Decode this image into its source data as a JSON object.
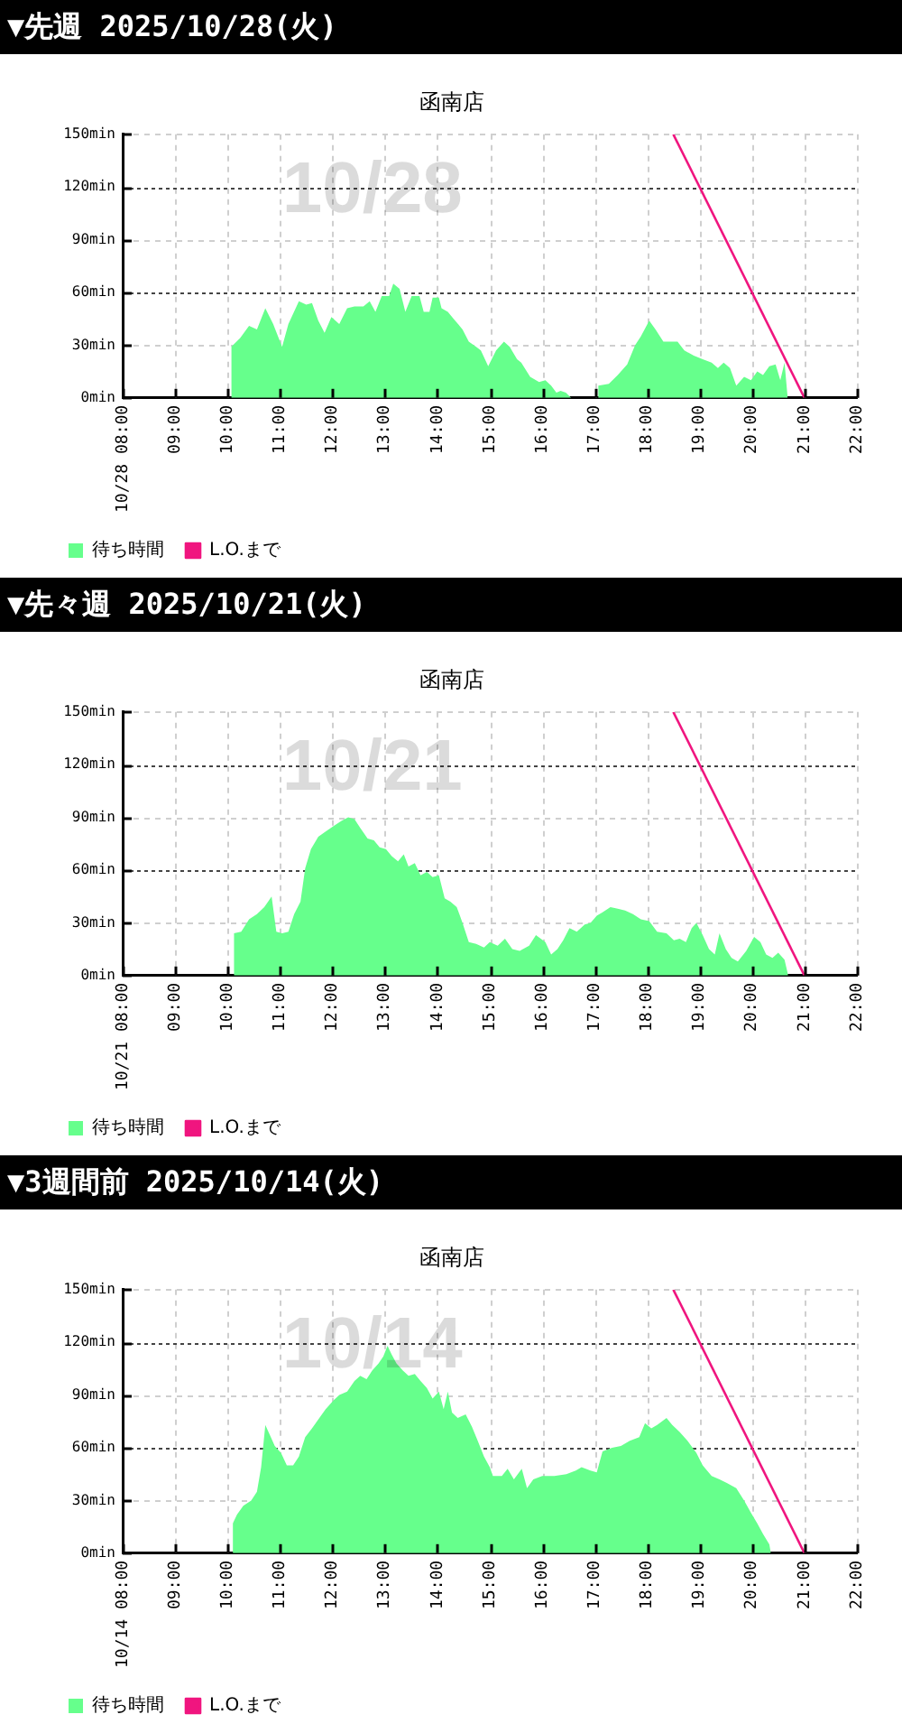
{
  "chart_data": [
    {
      "type": "area",
      "title": "▼先週 2025/10/28(火)",
      "subtitle": "函南店",
      "annotations": [
        "10/28"
      ],
      "xlim": [
        8,
        22
      ],
      "xticks": [
        {
          "value": 8,
          "label": "10/28 08:00"
        },
        {
          "value": 9,
          "label": "09:00"
        },
        {
          "value": 10,
          "label": "10:00"
        },
        {
          "value": 11,
          "label": "11:00"
        },
        {
          "value": 12,
          "label": "12:00"
        },
        {
          "value": 13,
          "label": "13:00"
        },
        {
          "value": 14,
          "label": "14:00"
        },
        {
          "value": 15,
          "label": "15:00"
        },
        {
          "value": 16,
          "label": "16:00"
        },
        {
          "value": 17,
          "label": "17:00"
        },
        {
          "value": 18,
          "label": "18:00"
        },
        {
          "value": 19,
          "label": "19:00"
        },
        {
          "value": 20,
          "label": "20:00"
        },
        {
          "value": 21,
          "label": "21:00"
        },
        {
          "value": 22,
          "label": "22:00"
        }
      ],
      "ylim": [
        0,
        150
      ],
      "yticks": [
        {
          "value": 0,
          "label": "0min"
        },
        {
          "value": 30,
          "label": "30min"
        },
        {
          "value": 60,
          "label": "60min"
        },
        {
          "value": 90,
          "label": "90min"
        },
        {
          "value": 120,
          "label": "120min"
        },
        {
          "value": 150,
          "label": "150min"
        }
      ],
      "grid": true,
      "legend": "bottom left",
      "marker": "none",
      "series": [
        {
          "name": "待ち時間",
          "color": "#66ff8c",
          "x": [
            10.07,
            10.24,
            10.41,
            10.56,
            10.72,
            10.87,
            11.04,
            11.16,
            11.36,
            11.5,
            11.61,
            11.73,
            11.85,
            11.98,
            12.13,
            12.28,
            12.42,
            12.59,
            12.71,
            12.82,
            12.94,
            13.08,
            13.16,
            13.28,
            13.39,
            13.51,
            13.66,
            13.74,
            13.85,
            13.91,
            14.03,
            14.08,
            14.2,
            14.31,
            14.48,
            14.6,
            14.74,
            14.83,
            14.97,
            15.12,
            15.27,
            15.38,
            15.52,
            15.6,
            15.77,
            15.94,
            16.06,
            16.17,
            16.27,
            16.35,
            16.45,
            16.55,
            17.05,
            17.07,
            17.27,
            17.44,
            17.62,
            17.77,
            17.88,
            18.04,
            18.16,
            18.31,
            18.46,
            18.58,
            18.71,
            18.89,
            19.06,
            19.23,
            19.35,
            19.46,
            19.58,
            19.7,
            19.85,
            19.98,
            20.1,
            20.21,
            20.33,
            20.45,
            20.54,
            20.62,
            20.68
          ],
          "values": [
            29,
            34,
            41,
            39,
            51,
            42,
            29,
            42,
            55,
            53,
            54,
            44,
            37,
            46,
            42,
            51,
            52,
            52,
            55,
            49,
            58,
            58,
            65,
            62,
            49,
            58,
            58,
            49,
            49,
            57,
            57,
            51,
            49,
            45,
            39,
            32,
            29,
            27,
            18,
            27,
            32,
            29,
            22,
            20,
            12,
            9,
            10,
            7,
            3,
            4,
            3,
            0,
            0,
            7,
            8,
            13,
            19,
            30,
            35,
            44,
            39,
            32,
            32,
            32,
            27,
            24,
            22,
            20,
            17,
            20,
            17,
            7,
            12,
            10,
            15,
            13,
            18,
            19,
            10,
            20,
            0
          ]
        },
        {
          "name": "L.O.まで",
          "type": "line",
          "color": "#f0157f",
          "x": [
            18.5,
            21
          ],
          "values": [
            150,
            0
          ]
        }
      ]
    },
    {
      "type": "area",
      "title": "▼先々週 2025/10/21(火)",
      "subtitle": "函南店",
      "annotations": [
        "10/21"
      ],
      "xlim": [
        8,
        22
      ],
      "xticks": [
        {
          "value": 8,
          "label": "10/21 08:00"
        },
        {
          "value": 9,
          "label": "09:00"
        },
        {
          "value": 10,
          "label": "10:00"
        },
        {
          "value": 11,
          "label": "11:00"
        },
        {
          "value": 12,
          "label": "12:00"
        },
        {
          "value": 13,
          "label": "13:00"
        },
        {
          "value": 14,
          "label": "14:00"
        },
        {
          "value": 15,
          "label": "15:00"
        },
        {
          "value": 16,
          "label": "16:00"
        },
        {
          "value": 17,
          "label": "17:00"
        },
        {
          "value": 18,
          "label": "18:00"
        },
        {
          "value": 19,
          "label": "19:00"
        },
        {
          "value": 20,
          "label": "20:00"
        },
        {
          "value": 21,
          "label": "21:00"
        },
        {
          "value": 22,
          "label": "22:00"
        }
      ],
      "ylim": [
        0,
        150
      ],
      "yticks": [
        {
          "value": 0,
          "label": "0min"
        },
        {
          "value": 30,
          "label": "30min"
        },
        {
          "value": 60,
          "label": "60min"
        },
        {
          "value": 90,
          "label": "90min"
        },
        {
          "value": 120,
          "label": "120min"
        },
        {
          "value": 150,
          "label": "150min"
        }
      ],
      "grid": true,
      "legend": "bottom left",
      "marker": "none",
      "series": [
        {
          "name": "待ち時間",
          "color": "#66ff8c",
          "x": [
            10.12,
            10.26,
            10.41,
            10.56,
            10.7,
            10.84,
            10.93,
            11.04,
            11.16,
            11.27,
            11.39,
            11.48,
            11.59,
            11.73,
            11.87,
            12.02,
            12.17,
            12.3,
            12.42,
            12.53,
            12.67,
            12.79,
            12.9,
            13.02,
            13.13,
            13.25,
            13.36,
            13.45,
            13.57,
            13.68,
            13.8,
            13.91,
            14.03,
            14.14,
            14.25,
            14.37,
            14.48,
            14.6,
            14.74,
            14.89,
            15,
            15.15,
            15.29,
            15.43,
            15.57,
            15.75,
            15.88,
            16.06,
            16.17,
            16.29,
            16.4,
            16.52,
            16.66,
            16.81,
            16.92,
            17.04,
            17.15,
            17.3,
            17.44,
            17.58,
            17.73,
            17.88,
            18.04,
            18.19,
            18.37,
            18.51,
            18.62,
            18.74,
            18.85,
            18.94,
            19.06,
            19.18,
            19.29,
            19.38,
            19.5,
            19.61,
            19.73,
            19.89,
            20.04,
            20.16,
            20.27,
            20.39,
            20.5,
            20.62,
            20.69
          ],
          "values": [
            24,
            25,
            32,
            35,
            39,
            45,
            25,
            24,
            25,
            35,
            42,
            61,
            72,
            79,
            82,
            85,
            88,
            90,
            89,
            84,
            78,
            77,
            73,
            72,
            68,
            65,
            69,
            62,
            64,
            57,
            59,
            56,
            57,
            44,
            42,
            39,
            30,
            19,
            18,
            16,
            19,
            17,
            21,
            15,
            14,
            17,
            23,
            19,
            12,
            15,
            20,
            27,
            25,
            29,
            30,
            34,
            36,
            39,
            38,
            37,
            35,
            32,
            31,
            25,
            24,
            20,
            21,
            19,
            27,
            30,
            23,
            15,
            12,
            24,
            15,
            10,
            8,
            14,
            22,
            19,
            12,
            10,
            13,
            9,
            0
          ]
        },
        {
          "name": "L.O.まで",
          "type": "line",
          "color": "#f0157f",
          "x": [
            18.5,
            21
          ],
          "values": [
            150,
            0
          ]
        }
      ]
    },
    {
      "type": "area",
      "title": "▼3週間前 2025/10/14(火)",
      "subtitle": "函南店",
      "annotations": [
        "10/14"
      ],
      "xlim": [
        8,
        22
      ],
      "xticks": [
        {
          "value": 8,
          "label": "10/14 08:00"
        },
        {
          "value": 9,
          "label": "09:00"
        },
        {
          "value": 10,
          "label": "10:00"
        },
        {
          "value": 11,
          "label": "11:00"
        },
        {
          "value": 12,
          "label": "12:00"
        },
        {
          "value": 13,
          "label": "13:00"
        },
        {
          "value": 14,
          "label": "14:00"
        },
        {
          "value": 15,
          "label": "15:00"
        },
        {
          "value": 16,
          "label": "16:00"
        },
        {
          "value": 17,
          "label": "17:00"
        },
        {
          "value": 18,
          "label": "18:00"
        },
        {
          "value": 19,
          "label": "19:00"
        },
        {
          "value": 20,
          "label": "20:00"
        },
        {
          "value": 21,
          "label": "21:00"
        },
        {
          "value": 22,
          "label": "22:00"
        }
      ],
      "ylim": [
        0,
        150
      ],
      "yticks": [
        {
          "value": 0,
          "label": "0min"
        },
        {
          "value": 30,
          "label": "30min"
        },
        {
          "value": 60,
          "label": "60min"
        },
        {
          "value": 90,
          "label": "90min"
        },
        {
          "value": 120,
          "label": "120min"
        },
        {
          "value": 150,
          "label": "150min"
        }
      ],
      "grid": true,
      "legend": "bottom left",
      "marker": "none",
      "series": [
        {
          "name": "待ち時間",
          "color": "#66ff8c",
          "x": [
            10.1,
            10.18,
            10.3,
            10.45,
            10.56,
            10.64,
            10.72,
            10.81,
            10.9,
            11.02,
            11.13,
            11.25,
            11.36,
            11.48,
            11.61,
            11.75,
            11.87,
            12.02,
            12.13,
            12.28,
            12.42,
            12.53,
            12.65,
            12.76,
            12.88,
            12.97,
            13.05,
            13.13,
            13.22,
            13.34,
            13.45,
            13.57,
            13.68,
            13.8,
            13.91,
            14.03,
            14.12,
            14.2,
            14.28,
            14.39,
            14.54,
            14.66,
            14.77,
            14.89,
            15,
            15.06,
            15.23,
            15.34,
            15.46,
            15.61,
            15.71,
            15.83,
            16,
            16.23,
            16.46,
            16.64,
            16.75,
            16.92,
            17.04,
            17.15,
            17.33,
            17.5,
            17.67,
            17.85,
            17.96,
            18.08,
            18.19,
            18.37,
            18.48,
            18.62,
            18.77,
            18.94,
            19.06,
            19.23,
            19.38,
            19.52,
            19.7,
            19.85,
            19.98,
            20.1,
            20.21,
            20.33,
            20.36
          ],
          "values": [
            17,
            22,
            27,
            30,
            35,
            49,
            73,
            67,
            61,
            57,
            50,
            50,
            55,
            66,
            71,
            77,
            82,
            87,
            90,
            92,
            98,
            101,
            99,
            104,
            108,
            112,
            118,
            113,
            108,
            104,
            101,
            102,
            98,
            94,
            88,
            92,
            82,
            92,
            80,
            77,
            79,
            72,
            64,
            55,
            49,
            44,
            44,
            48,
            42,
            48,
            37,
            42,
            44,
            44,
            45,
            47,
            49,
            47,
            46,
            58,
            60,
            61,
            64,
            66,
            74,
            71,
            73,
            77,
            73,
            69,
            64,
            57,
            50,
            44,
            42,
            40,
            37,
            30,
            23,
            17,
            11,
            5,
            0
          ]
        },
        {
          "name": "L.O.まで",
          "type": "line",
          "color": "#f0157f",
          "x": [
            18.5,
            21
          ],
          "values": [
            150,
            0
          ]
        }
      ]
    }
  ]
}
